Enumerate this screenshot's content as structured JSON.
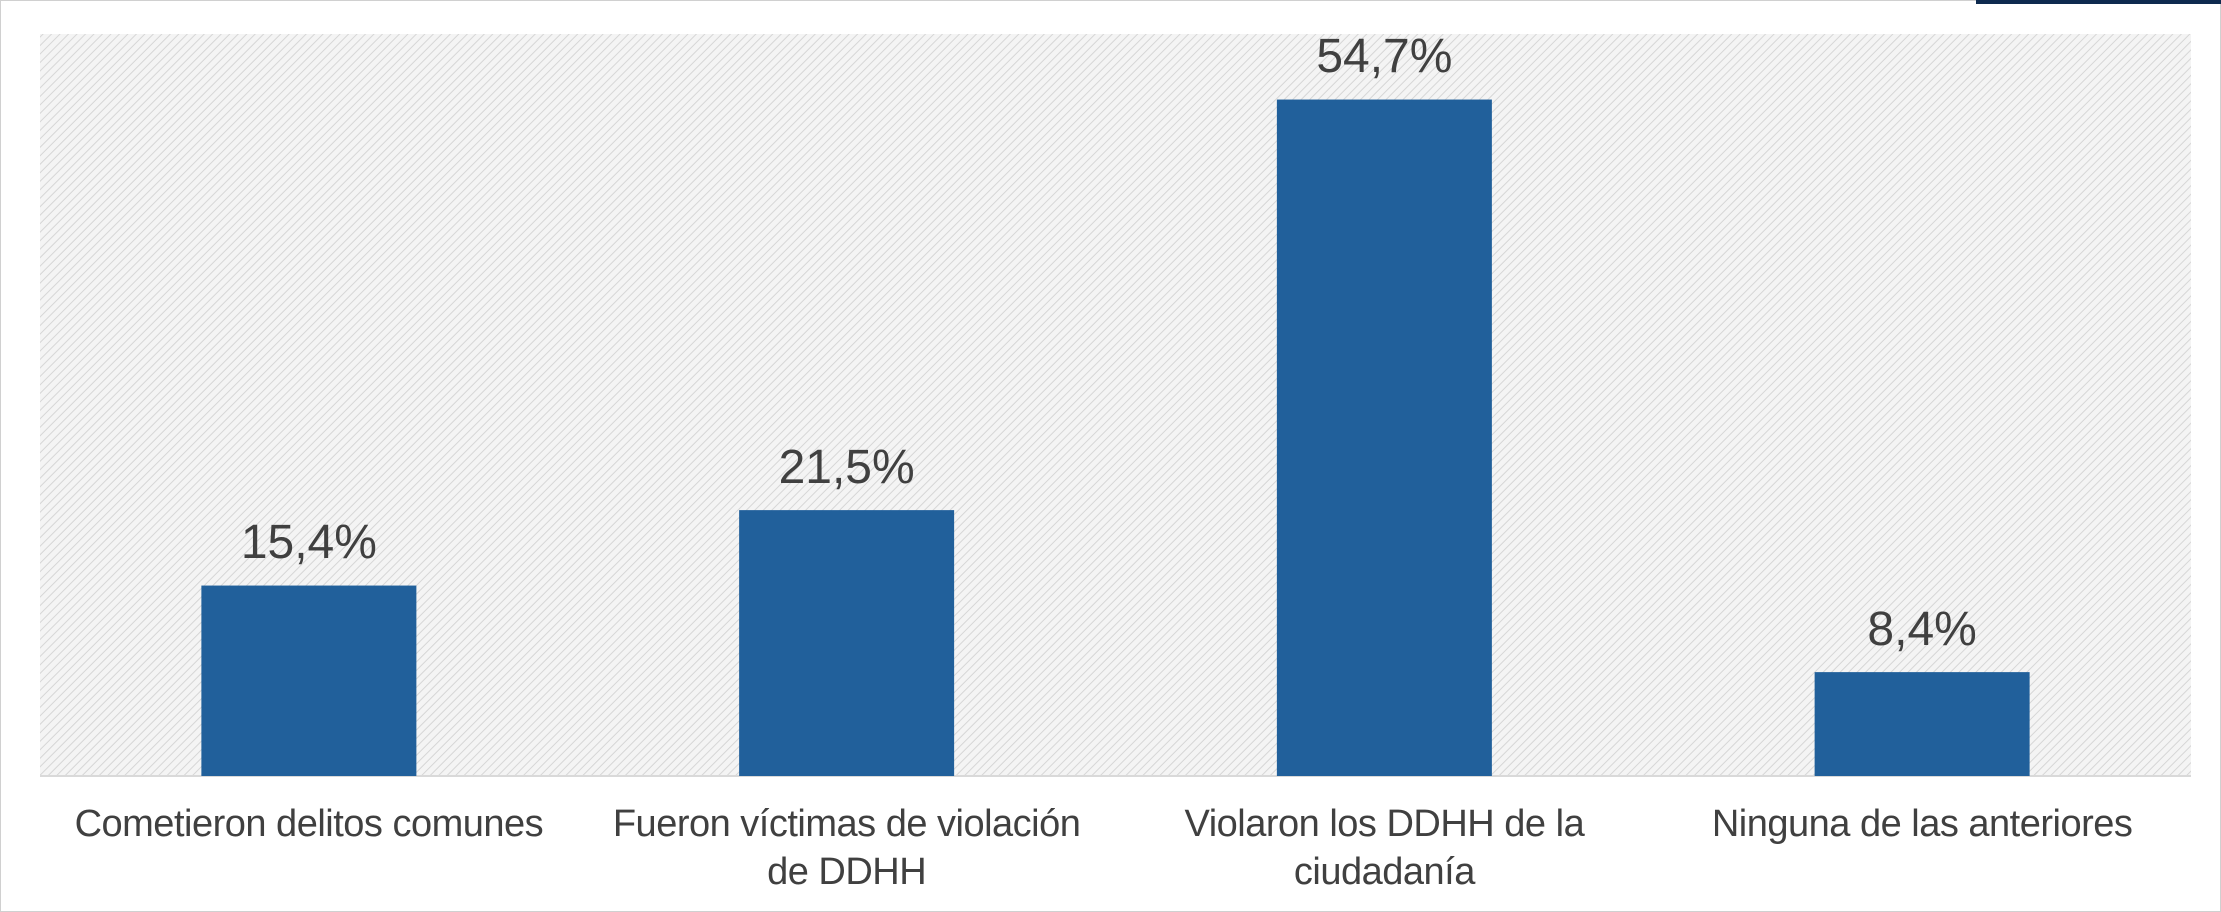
{
  "chart_data": {
    "type": "bar",
    "categories": [
      "Cometieron delitos comunes",
      "Fueron víctimas de violación de DDHH",
      "Violaron los DDHH de la ciudadanía",
      "Ninguna de las anteriores"
    ],
    "values": [
      15.4,
      21.5,
      54.7,
      8.4
    ],
    "value_labels": [
      "15,4%",
      "21,5%",
      "54,7%",
      "8,4%"
    ],
    "color": "#21609b",
    "ylim": [
      0,
      60
    ]
  }
}
